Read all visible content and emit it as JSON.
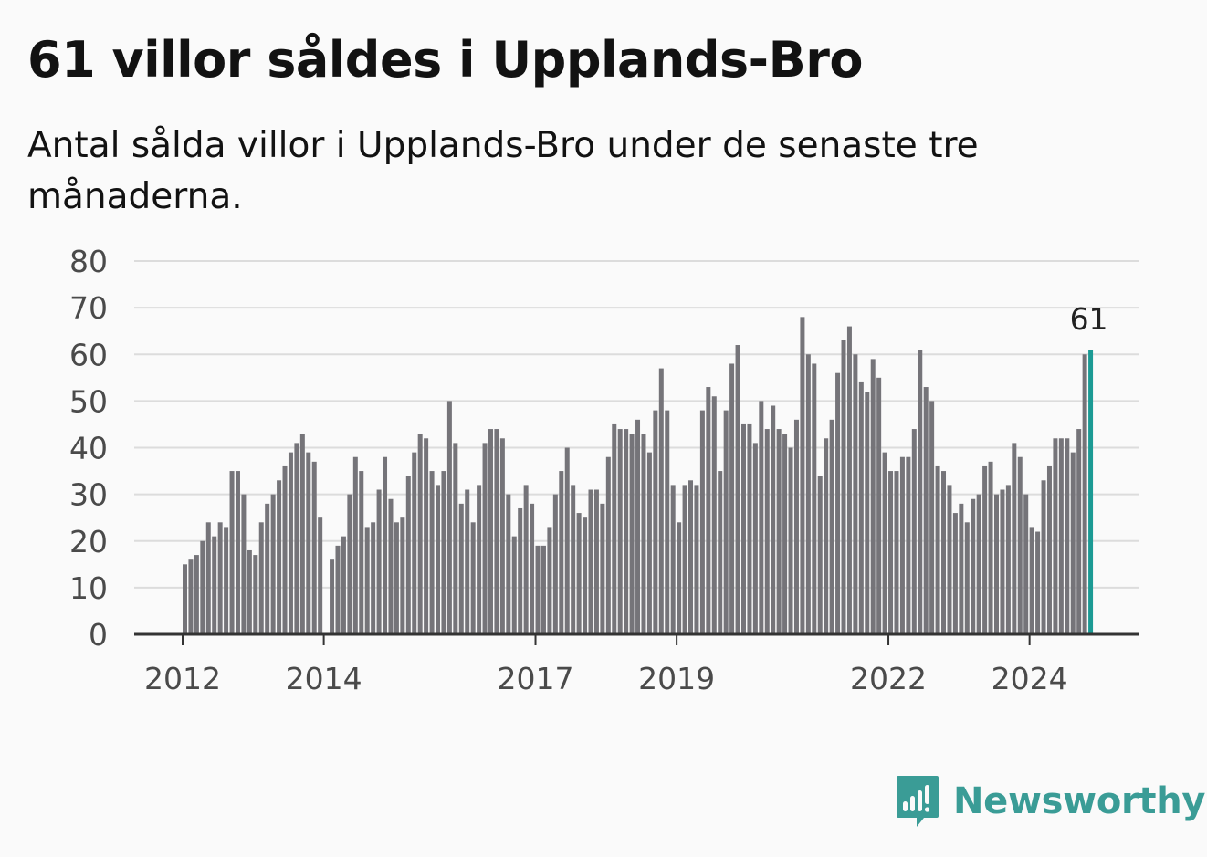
{
  "title": "61 villor såldes i Upplands-Bro",
  "subtitle": "Antal sålda villor i Upplands-Bro under de senaste tre månaderna.",
  "brand": {
    "name": "Newsworthy",
    "icon": "newsworthy-logo-icon",
    "color": "#3a9c96"
  },
  "colors": {
    "bar": "#757479",
    "highlight": "#1b9a94",
    "grid": "#dcdcdc",
    "axis": "#333333"
  },
  "chart_data": {
    "type": "bar",
    "title": "",
    "xlabel": "",
    "ylabel": "",
    "ylim": [
      0,
      80
    ],
    "y_ticks": [
      0,
      10,
      20,
      30,
      40,
      50,
      60,
      70,
      80
    ],
    "x_ticks": [
      {
        "label": "2012",
        "index": 0
      },
      {
        "label": "2014",
        "index": 24
      },
      {
        "label": "2017",
        "index": 60
      },
      {
        "label": "2019",
        "index": 84
      },
      {
        "label": "2022",
        "index": 120
      },
      {
        "label": "2024",
        "index": 144
      }
    ],
    "grid": true,
    "highlight_index": 154,
    "highlight_label": "61",
    "values": [
      15,
      16,
      17,
      20,
      24,
      21,
      24,
      23,
      35,
      35,
      30,
      18,
      17,
      24,
      28,
      30,
      33,
      36,
      39,
      41,
      43,
      39,
      37,
      25,
      null,
      16,
      19,
      21,
      30,
      38,
      35,
      23,
      24,
      31,
      38,
      29,
      24,
      25,
      34,
      39,
      43,
      42,
      35,
      32,
      35,
      50,
      41,
      28,
      31,
      24,
      32,
      41,
      44,
      44,
      42,
      30,
      21,
      27,
      32,
      28,
      19,
      19,
      23,
      30,
      35,
      40,
      32,
      26,
      25,
      31,
      31,
      28,
      38,
      45,
      44,
      44,
      43,
      46,
      43,
      39,
      48,
      57,
      48,
      32,
      24,
      32,
      33,
      32,
      48,
      53,
      51,
      35,
      48,
      58,
      62,
      45,
      45,
      41,
      50,
      44,
      49,
      44,
      43,
      40,
      46,
      68,
      60,
      58,
      34,
      42,
      46,
      56,
      63,
      66,
      60,
      54,
      52,
      59,
      55,
      39,
      35,
      35,
      38,
      38,
      44,
      61,
      53,
      50,
      36,
      35,
      32,
      26,
      28,
      24,
      29,
      30,
      36,
      37,
      30,
      31,
      32,
      41,
      38,
      30,
      23,
      22,
      33,
      36,
      42,
      42,
      42,
      39,
      44,
      60,
      61
    ]
  }
}
